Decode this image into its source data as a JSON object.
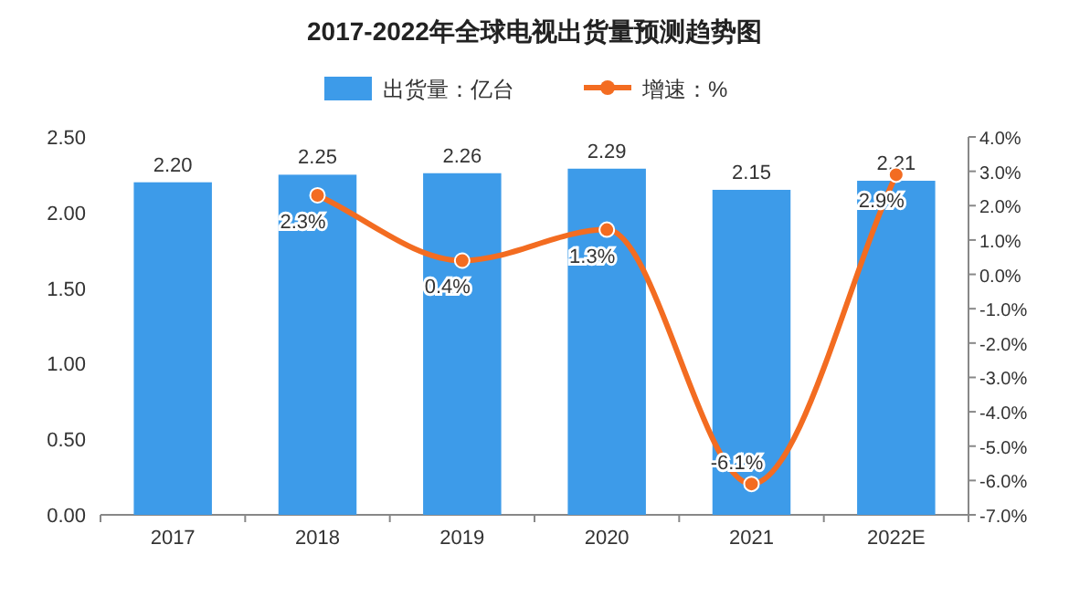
{
  "chart_data": {
    "type": "bar",
    "title": "2017-2022年全球电视出货量预测趋势图",
    "categories": [
      "2017",
      "2018",
      "2019",
      "2020",
      "2021",
      "2022E"
    ],
    "series": [
      {
        "name": "出货量：亿台",
        "color": "#3d9be9",
        "values": [
          2.2,
          2.25,
          2.26,
          2.29,
          2.15,
          2.21
        ],
        "value_labels": [
          "2.20",
          "2.25",
          "2.26",
          "2.29",
          "2.15",
          "2.21"
        ]
      },
      {
        "name": "增速：%",
        "type": "line",
        "axis": "y2",
        "color": "#f36c21",
        "marker": "circle",
        "values": [
          null,
          2.3,
          0.4,
          1.3,
          -6.1,
          2.9
        ],
        "value_labels": [
          null,
          "2.3%",
          "0.4%",
          "1.3%",
          "-6.1%",
          "2.9%"
        ]
      }
    ],
    "ylim": [
      0,
      2.5
    ],
    "yticks": [
      {
        "value": 0,
        "label": "0.00"
      },
      {
        "value": 0.5,
        "label": "0.50"
      },
      {
        "value": 1,
        "label": "1.00"
      },
      {
        "value": 1.5,
        "label": "1.50"
      },
      {
        "value": 2,
        "label": "2.00"
      },
      {
        "value": 2.5,
        "label": "2.50"
      }
    ],
    "y2lim": [
      -7,
      4
    ],
    "y2ticks": [
      {
        "value": 4,
        "label": "4.0%"
      },
      {
        "value": 3,
        "label": "3.0%"
      },
      {
        "value": 2,
        "label": "2.0%"
      },
      {
        "value": 1,
        "label": "1.0%"
      },
      {
        "value": 0,
        "label": "0.0%"
      },
      {
        "value": -1,
        "label": "-1.0%"
      },
      {
        "value": -2,
        "label": "-2.0%"
      },
      {
        "value": -3,
        "label": "-3.0%"
      },
      {
        "value": -4,
        "label": "-4.0%"
      },
      {
        "value": -5,
        "label": "-5.0%"
      },
      {
        "value": -6,
        "label": "-6.0%"
      },
      {
        "value": -7,
        "label": "-7.0%"
      }
    ],
    "legend": "top",
    "grid": false
  }
}
